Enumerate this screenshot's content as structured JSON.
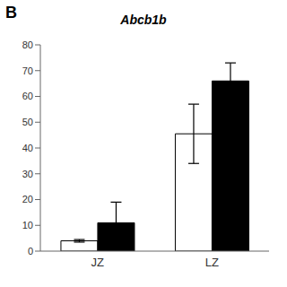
{
  "chart_data": {
    "type": "bar",
    "title": "Abcb1b",
    "categories": [
      "JZ",
      "LZ"
    ],
    "series": [
      {
        "color": "#ffffff",
        "values": [
          4.0,
          45.5
        ],
        "errors": [
          0.5,
          11.5
        ]
      },
      {
        "color": "#000000",
        "values": [
          11.0,
          66.0
        ],
        "errors": [
          8.0,
          7.0
        ]
      }
    ],
    "ylim": [
      0,
      80
    ],
    "yticks": [
      0,
      10,
      20,
      30,
      40,
      50,
      60,
      70,
      80
    ],
    "grid": false,
    "annotations": [
      {
        "text": "B"
      }
    ]
  }
}
